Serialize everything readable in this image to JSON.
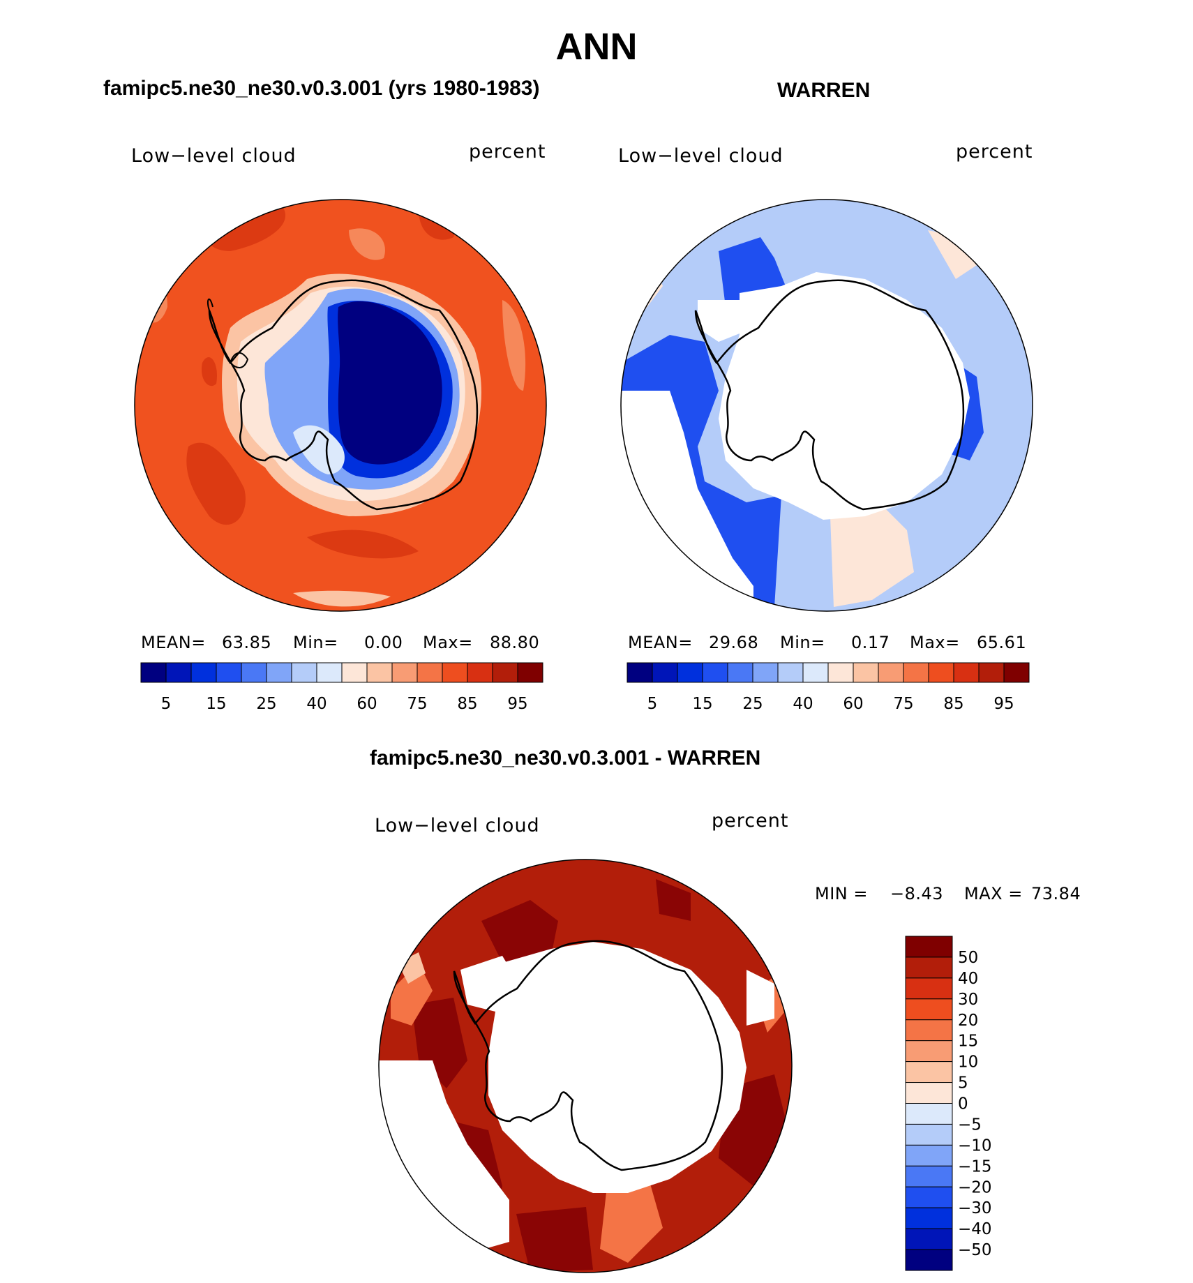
{
  "title": "ANN",
  "panels": [
    {
      "title": "famipc5.ne30_ne30.v0.3.001 (yrs 1980-1983)",
      "variable": "Low−level cloud",
      "units": "percent",
      "stats": {
        "mean_label": "MEAN=",
        "mean": "63.85",
        "min_label": "Min=",
        "min": "0.00",
        "max_label": "Max=",
        "max": "88.80"
      }
    },
    {
      "title": "WARREN",
      "variable": "Low−level cloud",
      "units": "percent",
      "stats": {
        "mean_label": "MEAN=",
        "mean": "29.68",
        "min_label": "Min=",
        "min": "0.17",
        "max_label": "Max=",
        "max": "65.61"
      }
    },
    {
      "title": "famipc5.ne30_ne30.v0.3.001 - WARREN",
      "variable": "Low−level cloud",
      "units": "percent",
      "stats": {
        "min_label": "MIN =",
        "min": "−8.43",
        "max_label": "MAX =",
        "max": "73.84"
      }
    }
  ],
  "colorbar_field": {
    "colors": [
      "#000080",
      "#0015b8",
      "#0030dd",
      "#1f4ff0",
      "#4a78f5",
      "#80a5f8",
      "#b4ccf9",
      "#dce9fb",
      "#fde6d8",
      "#fbc4a4",
      "#f89c74",
      "#f47446",
      "#ee4e1f",
      "#d83012",
      "#b21e0a",
      "#7f0000"
    ],
    "tick_labels": [
      "5",
      "15",
      "25",
      "40",
      "60",
      "75",
      "85",
      "95"
    ]
  },
  "colorbar_diff": {
    "colors": [
      "#000080",
      "#0015b8",
      "#0030dd",
      "#1f4ff0",
      "#4a78f5",
      "#80a5f8",
      "#b4ccf9",
      "#dce9fb",
      "#fde6d8",
      "#fbc4a4",
      "#f89c74",
      "#f47446",
      "#ee4e1f",
      "#d83012",
      "#b21e0a",
      "#7f0000"
    ],
    "tick_labels": [
      "50",
      "40",
      "30",
      "20",
      "15",
      "10",
      "5",
      "0",
      "−5",
      "−10",
      "−15",
      "−20",
      "−30",
      "−40",
      "−50"
    ]
  },
  "map_colors": {
    "model_ocean": "#f0521f",
    "model_ocean_dark": "#dc3a12",
    "model_ocean_light": "#f6885a",
    "model_edge": "#fbc4a4",
    "model_land_inner": "#000080",
    "model_land_ring1": "#0030dd",
    "model_land_ring2": "#80a5f8",
    "obs_main": "#b4ccf9",
    "obs_dark": "#1f4ff0",
    "obs_peach": "#fde6d8",
    "diff_main": "#b21e0a",
    "diff_dark": "#8a0505",
    "diff_light": "#f47446",
    "missing": "#ffffff"
  }
}
